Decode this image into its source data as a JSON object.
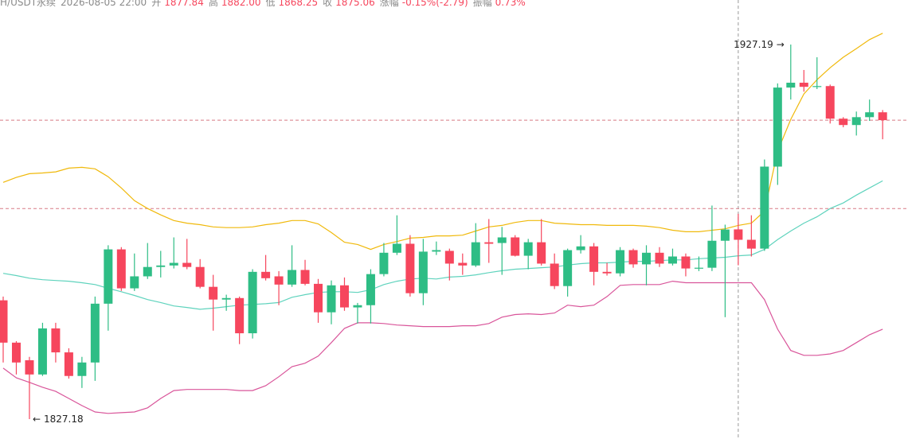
{
  "header": {
    "symbol": "H/USDT永续",
    "time": "2026-08-05 22:00",
    "fields": [
      {
        "label": "开",
        "value": "1877.84"
      },
      {
        "label": "高",
        "value": "1882.00"
      },
      {
        "label": "低",
        "value": "1868.25"
      },
      {
        "label": "收",
        "value": "1875.06"
      },
      {
        "label": "涨幅",
        "value": "-0.15%(-2.79)"
      },
      {
        "label": "振幅",
        "value": "0.73%"
      }
    ]
  },
  "chart_data": {
    "type": "candlestick",
    "up_color": "#2ebd85",
    "down_color": "#f6465d",
    "open": [
      1858.9,
      1847.6,
      1842.9,
      1839.1,
      1851.4,
      1845.0,
      1838.7,
      1842.3,
      1858.0,
      1872.5,
      1862.1,
      1865.3,
      1867.8,
      1868.2,
      1868.9,
      1867.8,
      1862.5,
      1859.1,
      1859.5,
      1850.1,
      1866.5,
      1865.3,
      1863.1,
      1867.0,
      1863.3,
      1855.7,
      1862.9,
      1857.0,
      1857.6,
      1865.9,
      1871.6,
      1874.0,
      1860.8,
      1871.9,
      1872.1,
      1868.9,
      1868.2,
      1874.4,
      1874.2,
      1875.7,
      1870.8,
      1874.4,
      1868.7,
      1862.7,
      1872.3,
      1873.3,
      1866.5,
      1866.1,
      1872.3,
      1868.5,
      1871.6,
      1868.7,
      1870.6,
      1867.4,
      1867.6,
      1874.8,
      1877.84,
      1875.06,
      1872.7,
      1894.6,
      1915.7,
      1917.0,
      1915.9,
      1916.1,
      1907.4,
      1905.7,
      1907.8,
      1909.1
    ],
    "high": [
      1859.9,
      1848.0,
      1843.8,
      1852.9,
      1852.9,
      1846.1,
      1843.8,
      1859.9,
      1873.6,
      1873.1,
      1871.4,
      1874.2,
      1872.1,
      1875.7,
      1875.3,
      1869.9,
      1865.7,
      1860.4,
      1859.9,
      1867.2,
      1871.0,
      1866.7,
      1873.6,
      1869.7,
      1864.6,
      1864.2,
      1865.0,
      1858.2,
      1867.2,
      1874.2,
      1881.6,
      1876.3,
      1875.3,
      1874.6,
      1872.7,
      1871.4,
      1879.5,
      1880.6,
      1878.5,
      1876.3,
      1875.3,
      1880.6,
      1871.4,
      1872.7,
      1876.3,
      1874.2,
      1868.9,
      1873.1,
      1872.7,
      1873.6,
      1873.1,
      1872.7,
      1871.4,
      1870.6,
      1884.2,
      1879.1,
      1882.0,
      1881.6,
      1896.5,
      1916.8,
      1927.19,
      1920.4,
      1923.8,
      1916.5,
      1907.8,
      1909.3,
      1912.5,
      1909.7
    ],
    "low": [
      1842.3,
      1839.1,
      1827.18,
      1838.7,
      1842.3,
      1838.0,
      1835.5,
      1837.4,
      1850.8,
      1861.4,
      1861.4,
      1864.6,
      1865.0,
      1867.4,
      1867.2,
      1862.1,
      1850.8,
      1856.1,
      1847.2,
      1848.7,
      1864.2,
      1857.6,
      1862.5,
      1862.9,
      1852.9,
      1852.5,
      1856.1,
      1852.7,
      1852.7,
      1865.3,
      1871.0,
      1859.9,
      1857.6,
      1871.0,
      1864.2,
      1865.7,
      1867.8,
      1868.9,
      1865.7,
      1870.6,
      1867.2,
      1868.2,
      1861.9,
      1859.9,
      1871.4,
      1862.9,
      1865.5,
      1865.3,
      1867.6,
      1862.9,
      1867.8,
      1868.2,
      1865.3,
      1866.7,
      1866.7,
      1854.4,
      1868.25,
      1870.6,
      1872.1,
      1889.7,
      1912.5,
      1914.6,
      1915.3,
      1906.1,
      1905.1,
      1902.9,
      1906.8,
      1901.9
    ],
    "close": [
      1847.6,
      1842.3,
      1839.1,
      1851.4,
      1845.0,
      1838.7,
      1842.3,
      1858.0,
      1872.5,
      1862.1,
      1865.3,
      1867.8,
      1868.2,
      1868.9,
      1867.8,
      1862.5,
      1859.1,
      1859.5,
      1850.1,
      1866.5,
      1864.8,
      1863.1,
      1867.0,
      1863.3,
      1855.7,
      1862.9,
      1857.0,
      1857.6,
      1865.9,
      1871.6,
      1874.0,
      1860.8,
      1871.9,
      1872.3,
      1868.7,
      1868.2,
      1874.4,
      1874.0,
      1875.7,
      1870.8,
      1874.4,
      1868.7,
      1862.7,
      1872.3,
      1873.3,
      1866.5,
      1866.1,
      1872.3,
      1868.5,
      1871.6,
      1868.7,
      1870.6,
      1867.4,
      1867.6,
      1874.8,
      1877.8,
      1875.06,
      1872.7,
      1894.6,
      1915.7,
      1917.0,
      1915.9,
      1916.1,
      1907.4,
      1905.7,
      1907.8,
      1909.1,
      1907.0
    ],
    "series": [
      {
        "color": "#f0b90b",
        "values": [
          1890.4,
          1891.7,
          1892.7,
          1892.9,
          1893.2,
          1894.2,
          1894.4,
          1894.0,
          1891.9,
          1888.9,
          1885.5,
          1883.4,
          1881.7,
          1880.2,
          1879.5,
          1879.1,
          1878.5,
          1878.3,
          1878.3,
          1878.5,
          1879.1,
          1879.5,
          1880.2,
          1880.2,
          1879.3,
          1877.0,
          1874.4,
          1873.8,
          1872.5,
          1873.8,
          1874.6,
          1875.5,
          1875.7,
          1876.1,
          1876.1,
          1876.3,
          1877.4,
          1878.5,
          1878.9,
          1879.7,
          1880.2,
          1880.2,
          1879.5,
          1879.3,
          1879.1,
          1879.1,
          1878.9,
          1878.9,
          1878.9,
          1878.7,
          1878.3,
          1877.6,
          1877.2,
          1877.2,
          1877.6,
          1878.0,
          1878.9,
          1879.5,
          1882.7,
          1898.7,
          1907.2,
          1914.0,
          1917.8,
          1921.0,
          1923.8,
          1926.1,
          1928.5,
          1930.2
        ]
      },
      {
        "color": "#5fd3bd",
        "values": [
          1866.1,
          1865.5,
          1864.8,
          1864.4,
          1864.2,
          1864.0,
          1863.6,
          1863.1,
          1862.1,
          1861.2,
          1860.2,
          1859.1,
          1858.3,
          1857.4,
          1857.0,
          1856.5,
          1856.8,
          1857.2,
          1857.6,
          1857.8,
          1858.0,
          1858.3,
          1859.7,
          1860.4,
          1861.0,
          1861.2,
          1861.2,
          1861.0,
          1861.7,
          1863.1,
          1864.0,
          1864.6,
          1864.8,
          1864.6,
          1865.1,
          1865.3,
          1865.7,
          1866.3,
          1866.8,
          1867.2,
          1867.4,
          1867.6,
          1867.8,
          1868.3,
          1868.7,
          1868.9,
          1868.9,
          1869.1,
          1869.3,
          1869.3,
          1869.5,
          1869.7,
          1869.7,
          1870.0,
          1870.2,
          1870.4,
          1870.8,
          1871.0,
          1872.5,
          1875.1,
          1877.4,
          1879.5,
          1881.2,
          1883.4,
          1884.9,
          1887.0,
          1888.9,
          1890.8
        ]
      },
      {
        "color": "#d9559a",
        "values": [
          1840.8,
          1838.2,
          1837.0,
          1835.7,
          1834.6,
          1832.7,
          1830.8,
          1829.1,
          1828.7,
          1828.9,
          1829.1,
          1830.2,
          1832.7,
          1834.8,
          1835.1,
          1835.1,
          1835.1,
          1835.1,
          1834.8,
          1834.8,
          1836.1,
          1838.5,
          1841.2,
          1842.1,
          1844.0,
          1847.6,
          1851.4,
          1852.9,
          1852.9,
          1852.7,
          1852.3,
          1852.1,
          1851.9,
          1851.9,
          1851.9,
          1852.1,
          1852.1,
          1852.7,
          1854.4,
          1855.1,
          1855.3,
          1855.1,
          1855.5,
          1857.6,
          1857.2,
          1857.6,
          1859.9,
          1862.9,
          1863.1,
          1863.1,
          1863.1,
          1864.0,
          1863.6,
          1863.6,
          1863.6,
          1863.6,
          1863.6,
          1863.6,
          1859.1,
          1851.2,
          1845.5,
          1844.2,
          1844.2,
          1844.6,
          1845.5,
          1847.6,
          1849.7,
          1851.2
        ]
      }
    ],
    "crosshair_price": 1883.4
  }
}
